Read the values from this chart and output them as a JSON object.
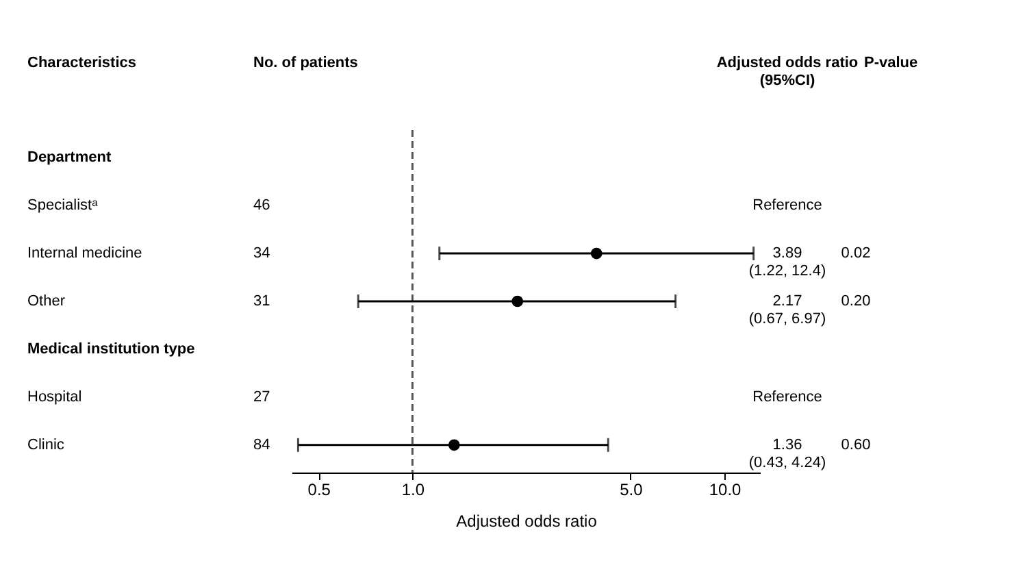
{
  "chart_data": {
    "type": "scatter",
    "orientation": "horizontal",
    "ylabel": "Characteristics",
    "xlabel": "Adjusted odds ratio",
    "categories": [
      "Department",
      "Specialistᵃ",
      "Internal medicine",
      "Other",
      "Medical institution type",
      "Hospital",
      "Clinic"
    ],
    "series": [
      {
        "color": "#000000",
        "values": [
          null,
          null,
          3.89,
          2.17,
          null,
          null,
          1.36
        ],
        "errors": [
          null,
          null,
          [
            1.22,
            12.4
          ],
          [
            0.67,
            6.97
          ],
          null,
          null,
          [
            0.43,
            4.24
          ]
        ],
        "value_labels": [
          null,
          "Reference",
          "3.89\n(1.22, 12.4)",
          "2.17\n(0.67, 6.97)",
          null,
          "Reference",
          "1.36\n(0.43, 4.24)"
        ]
      }
    ],
    "log": "x",
    "xlim": [
      0.41,
      13
    ],
    "xticks": [
      0.5,
      {
        "value": 1,
        "label": "1.0"
      },
      {
        "value": 5,
        "label": "5.0"
      },
      {
        "value": 10,
        "label": "10.0"
      }
    ],
    "marker": "circle",
    "ref_lines": [
      {
        "axis": "x",
        "value": 1,
        "line_style": "dashed"
      }
    ],
    "annotations": [
      "No. of patients",
      "Adjusted odds ratio\n(95%CI)",
      "P-value",
      "46",
      "34",
      "0.02",
      "31",
      "0.20",
      "27",
      "84",
      "0.60"
    ]
  }
}
